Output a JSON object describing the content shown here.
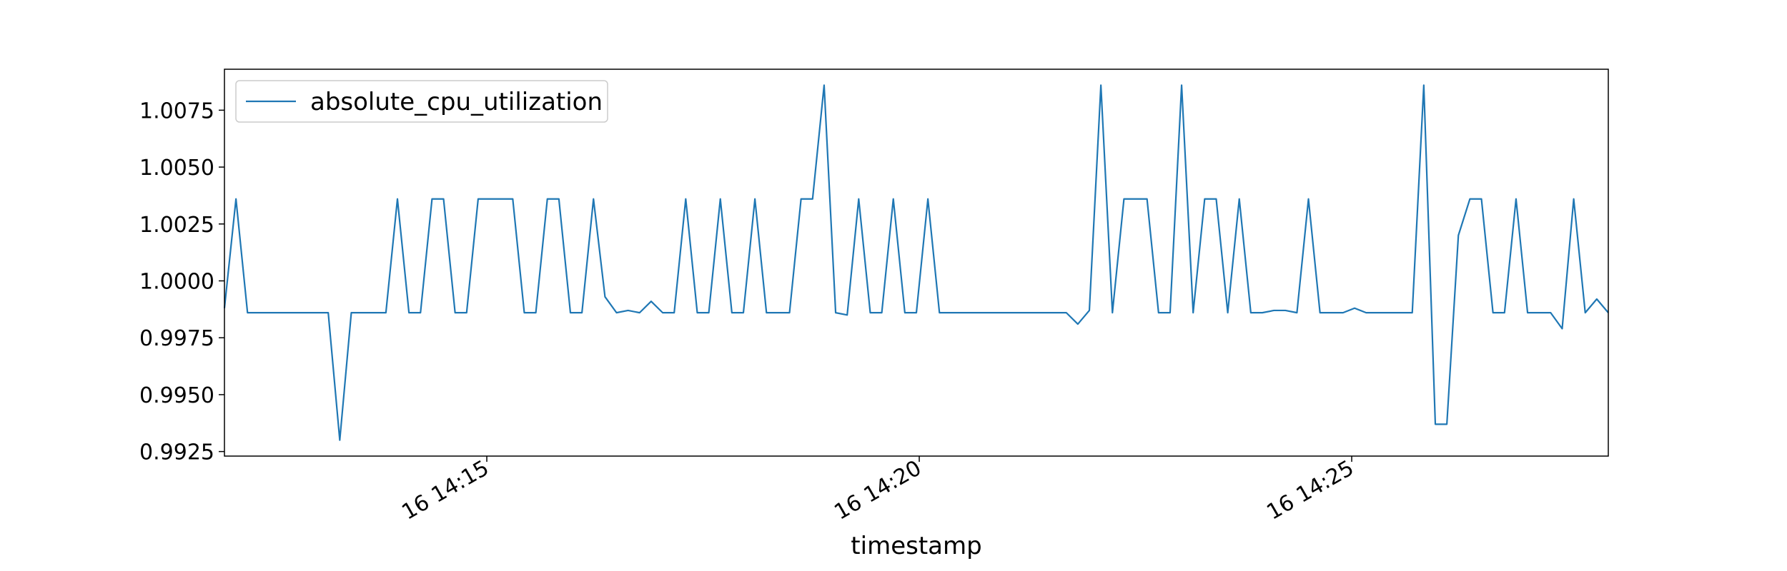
{
  "chart_data": {
    "type": "line",
    "x_label": "timestamp",
    "x": [
      718,
      726,
      734,
      742,
      750,
      758,
      766,
      774,
      782,
      790,
      798,
      806,
      814,
      822,
      830,
      838,
      846,
      854,
      862,
      870,
      878,
      886,
      894,
      902,
      910,
      918,
      926,
      934,
      942,
      950,
      958,
      966,
      974,
      982,
      990,
      998,
      1006,
      1014,
      1022,
      1030,
      1038,
      1046,
      1054,
      1062,
      1070,
      1078,
      1086,
      1094,
      1102,
      1110,
      1118,
      1126,
      1134,
      1142,
      1150,
      1158,
      1166,
      1174,
      1182,
      1190,
      1198,
      1206,
      1214,
      1222,
      1230,
      1238,
      1246,
      1254,
      1262,
      1270,
      1278,
      1286,
      1294,
      1302,
      1310,
      1318,
      1326,
      1334,
      1342,
      1350,
      1358,
      1366,
      1374,
      1382,
      1390,
      1398,
      1406,
      1414,
      1422,
      1430,
      1438,
      1446,
      1454,
      1462,
      1470,
      1478,
      1486,
      1494,
      1502,
      1510,
      1518,
      1526,
      1534,
      1542,
      1550,
      1558,
      1566,
      1574,
      1582,
      1590,
      1598,
      1606,
      1614,
      1622,
      1630,
      1638,
      1646,
      1654,
      1662,
      1670,
      1678
    ],
    "series": [
      {
        "name": "absolute_cpu_utilization",
        "color": "#1f77b4",
        "values": [
          0.9988,
          1.0036,
          0.9986,
          0.9986,
          0.9986,
          0.9986,
          0.9986,
          0.9986,
          0.9986,
          0.9986,
          0.993,
          0.9986,
          0.9986,
          0.9986,
          0.9986,
          1.0036,
          0.9986,
          0.9986,
          1.0036,
          1.0036,
          0.9986,
          0.9986,
          1.0036,
          1.0036,
          1.0036,
          1.0036,
          0.9986,
          0.9986,
          1.0036,
          1.0036,
          0.9986,
          0.9986,
          1.0036,
          0.9993,
          0.9986,
          0.9987,
          0.9986,
          0.9991,
          0.9986,
          0.9986,
          1.0036,
          0.9986,
          0.9986,
          1.0036,
          0.9986,
          0.9986,
          1.0036,
          0.9986,
          0.9986,
          0.9986,
          1.0036,
          1.0036,
          1.0086,
          0.9986,
          0.9985,
          1.0036,
          0.9986,
          0.9986,
          1.0036,
          0.9986,
          0.9986,
          1.0036,
          0.9986,
          0.9986,
          0.9986,
          0.9986,
          0.9986,
          0.9986,
          0.9986,
          0.9986,
          0.9986,
          0.9986,
          0.9986,
          0.9986,
          0.9981,
          0.9987,
          1.0086,
          0.9986,
          1.0036,
          1.0036,
          1.0036,
          0.9986,
          0.9986,
          1.0086,
          0.9986,
          1.0036,
          1.0036,
          0.9986,
          1.0036,
          0.9986,
          0.9986,
          0.9987,
          0.9987,
          0.9986,
          1.0036,
          0.9986,
          0.9986,
          0.9986,
          0.9988,
          0.9986,
          0.9986,
          0.9986,
          0.9986,
          0.9986,
          1.0086,
          0.9937,
          0.9937,
          1.002,
          1.0036,
          1.0036,
          0.9986,
          0.9986,
          1.0036,
          0.9986,
          0.9986,
          0.9986,
          0.9979,
          1.0036,
          0.9986,
          0.9992,
          0.9986
        ]
      }
    ],
    "xlim": [
      718,
      1678
    ],
    "xticks": [
      {
        "value": 900,
        "label": "16 14:15"
      },
      {
        "value": 1200,
        "label": "16 14:20"
      },
      {
        "value": 1500,
        "label": "16 14:25"
      }
    ],
    "ylim": [
      0.9923,
      1.0093
    ],
    "yticks": [
      0.9925,
      {
        "value": 0.995,
        "label": "0.9950"
      },
      0.9975,
      {
        "value": 1,
        "label": "1.0000"
      },
      1.0025,
      {
        "value": 1.005,
        "label": "1.0050"
      },
      1.0075
    ],
    "grid": false,
    "legend": "upper left"
  }
}
